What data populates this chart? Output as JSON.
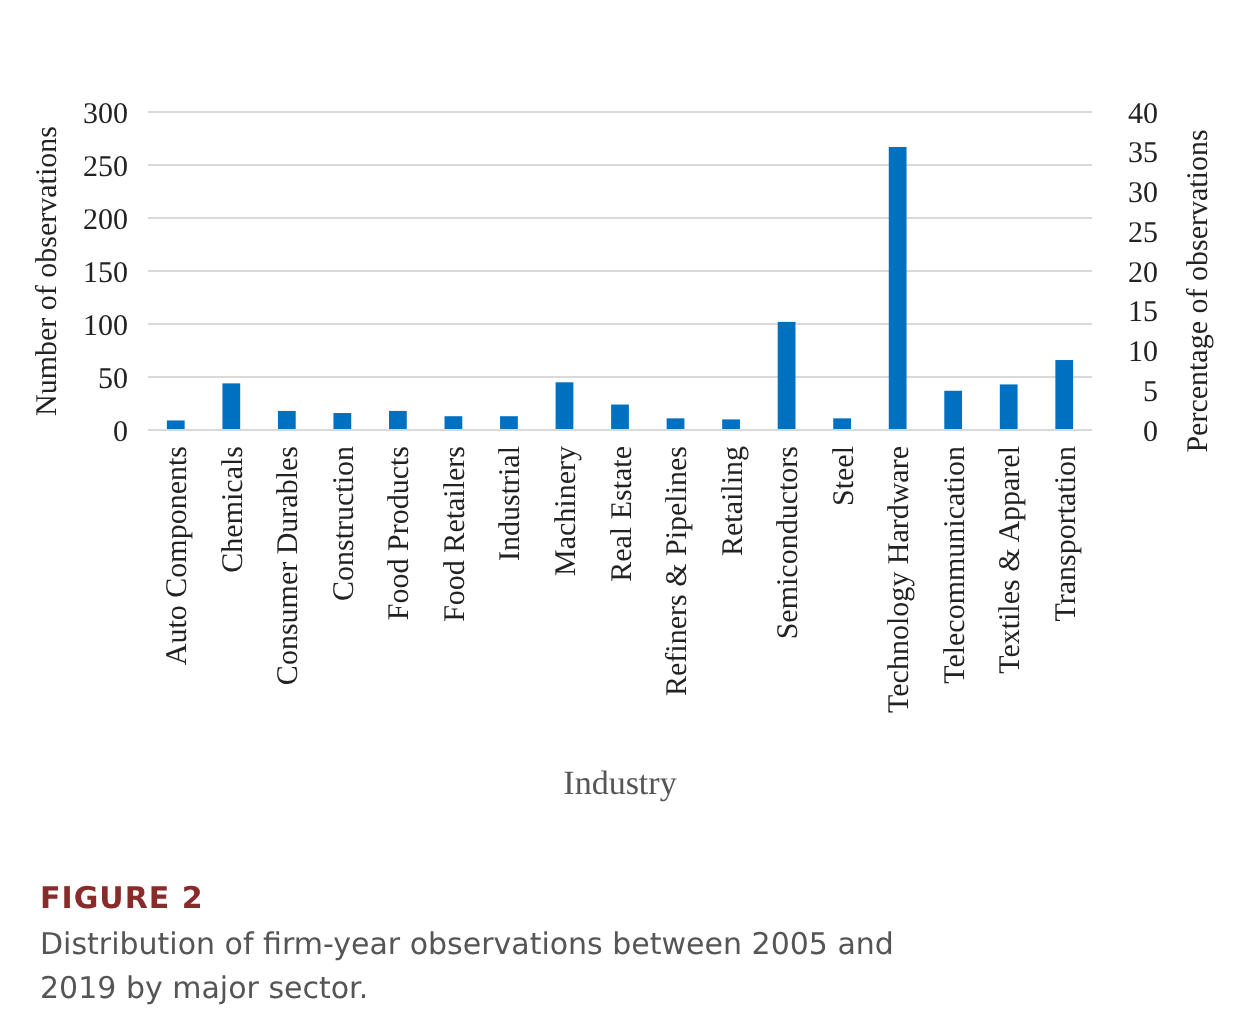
{
  "chart_data": {
    "type": "bar",
    "xlabel": "Industry",
    "ylabel": "Number of observations",
    "y2label": "Percentage of observations",
    "categories": [
      "Auto Components",
      "Chemicals",
      "Consumer Durables",
      "Construction",
      "Food Products",
      "Food Retailers",
      "Industrial",
      "Machinery",
      "Real Estate",
      "Refiners & Pipelines",
      "Retailing",
      "Semiconductors",
      "Steel",
      "Technology Hardware",
      "Telecommunication",
      "Textiles & Apparel",
      "Transportation"
    ],
    "values": [
      9,
      44,
      18,
      16,
      18,
      13,
      13,
      45,
      24,
      11,
      10,
      102,
      11,
      267,
      37,
      43,
      66
    ],
    "color": "#0070c0",
    "ylim": [
      0,
      300
    ],
    "yticks": [
      0,
      50,
      100,
      150,
      200,
      250,
      300
    ],
    "y2lim": [
      0,
      40
    ],
    "y2ticks": [
      0,
      5,
      10,
      15,
      20,
      25,
      30,
      35,
      40
    ],
    "grid": "y",
    "annotations": [
      "FIGURE 2",
      "Distribution of firm-year observations between 2005 and 2019 by major sector."
    ]
  }
}
